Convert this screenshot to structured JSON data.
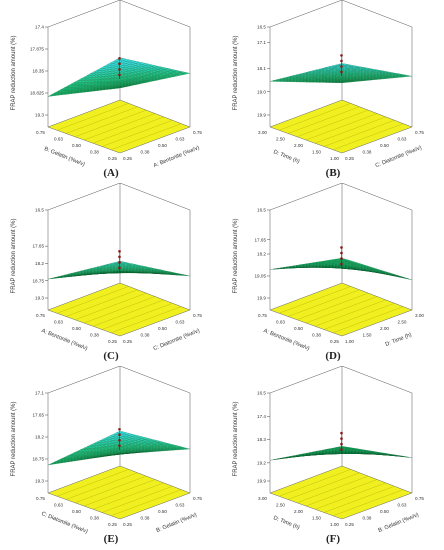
{
  "figure": {
    "panels": [
      {
        "id": "A",
        "caption": "(A)"
      },
      {
        "id": "B",
        "caption": "(B)"
      },
      {
        "id": "C",
        "caption": "(C)"
      },
      {
        "id": "D",
        "caption": "(D)"
      },
      {
        "id": "E",
        "caption": "(E)"
      },
      {
        "id": "F",
        "caption": "(F)"
      }
    ]
  },
  "chart_data": [
    {
      "type": "surface3d",
      "panel": "A",
      "zlabel": "FRAP reduction amount (%)",
      "z_ticks": [
        "17.4",
        "17.875",
        "18.35",
        "18.825",
        "19.3"
      ],
      "factor_left": {
        "label": "B: Gelatin (%w/v)",
        "ticks": [
          "0.75",
          "0.63",
          "0.50",
          "0.38",
          "0.25"
        ]
      },
      "factor_right": {
        "label": "A: Bentonite (%w/v)",
        "ticks": [
          "0.25",
          "0.38",
          "0.50",
          "0.63",
          "0.75"
        ]
      },
      "surface_corners": {
        "left": 18.9,
        "back": 19.3,
        "right": 18.4,
        "front": 17.5
      },
      "floor_color": "#f0f020",
      "surface_colors": [
        "#00a94f",
        "#1fd18f",
        "#35e0e6"
      ]
    },
    {
      "type": "surface3d",
      "panel": "B",
      "zlabel": "FRAP reduction amount (%)",
      "z_ticks": [
        "16.5",
        "17.1",
        "18.1",
        "19.0",
        "19.9"
      ],
      "factor_left": {
        "label": "D: Time (h)",
        "ticks": [
          "3.00",
          "2.50",
          "2.00",
          "1.50",
          "1.00"
        ]
      },
      "factor_right": {
        "label": "C: Diatomite (%w/v)",
        "ticks": [
          "0.25",
          "0.38",
          "0.50",
          "0.63",
          "0.75"
        ]
      },
      "surface_corners": {
        "left": 18.6,
        "back": 19.7,
        "right": 18.4,
        "front": 16.9
      },
      "floor_color": "#f0f020",
      "surface_colors": [
        "#00a94f",
        "#1fd18f",
        "#35e0e6"
      ]
    },
    {
      "type": "surface3d",
      "panel": "C",
      "zlabel": "FRAP reduction amount (%)",
      "z_ticks": [
        "16.5",
        "17.65",
        "18.2",
        "18.75",
        "19.3"
      ],
      "factor_left": {
        "label": "A: Bentonite (%w/v)",
        "ticks": [
          "0.75",
          "0.63",
          "0.50",
          "0.38",
          "0.25"
        ]
      },
      "factor_right": {
        "label": "C: Diatomite (%w/v)",
        "ticks": [
          "0.25",
          "0.38",
          "0.50",
          "0.63",
          "0.75"
        ]
      },
      "surface_corners": {
        "left": 18.7,
        "back": 19.3,
        "right": 18.6,
        "front": 17.3
      },
      "floor_color": "#f0f020",
      "surface_colors": [
        "#00a94f",
        "#1fd18f",
        "#35e0e6"
      ]
    },
    {
      "type": "surface3d",
      "panel": "D",
      "zlabel": "FRAP reduction amount (%)",
      "z_ticks": [
        "16.5",
        "17.65",
        "18.2",
        "19.05",
        "19.9"
      ],
      "factor_left": {
        "label": "A: Bentonite (%w/v)",
        "ticks": [
          "0.75",
          "0.63",
          "0.50",
          "0.38",
          "0.25"
        ]
      },
      "factor_right": {
        "label": "D: Time (h)",
        "ticks": [
          "1.00",
          "1.50",
          "2.00",
          "2.50",
          "3.00"
        ]
      },
      "surface_corners": {
        "left": 18.8,
        "back": 19.4,
        "right": 19.2,
        "front": 17.6
      },
      "floor_color": "#f0f020",
      "surface_colors": [
        "#00a94f",
        "#1fd18f",
        "#35e0e6"
      ]
    },
    {
      "type": "surface3d",
      "panel": "E",
      "zlabel": "FRAP reduction amount (%)",
      "z_ticks": [
        "17.1",
        "17.65",
        "18.2",
        "18.75",
        "19.3"
      ],
      "factor_left": {
        "label": "C: Diatomite (%w/v)",
        "ticks": [
          "0.75",
          "0.63",
          "0.50",
          "0.38",
          "0.25"
        ]
      },
      "factor_right": {
        "label": "B: Gelatin (%w/v)",
        "ticks": [
          "0.25",
          "0.38",
          "0.50",
          "0.63",
          "0.75"
        ]
      },
      "surface_corners": {
        "left": 18.9,
        "back": 19.3,
        "right": 18.5,
        "front": 17.4
      },
      "floor_color": "#f0f020",
      "surface_colors": [
        "#00a94f",
        "#1fd18f",
        "#35e0e6"
      ]
    },
    {
      "type": "surface3d",
      "panel": "F",
      "zlabel": "FRAP reduction amount (%)",
      "z_ticks": [
        "16.5",
        "17.4",
        "18.3",
        "19.2",
        "19.9"
      ],
      "factor_left": {
        "label": "D: Time (h)",
        "ticks": [
          "3.00",
          "2.50",
          "2.00",
          "1.50",
          "1.00"
        ]
      },
      "factor_right": {
        "label": "B: Gelatin (%w/v)",
        "ticks": [
          "0.25",
          "0.38",
          "0.50",
          "0.63",
          "0.75"
        ]
      },
      "surface_corners": {
        "left": 19.1,
        "back": 19.6,
        "right": 19.0,
        "front": 17.7
      },
      "floor_color": "#f0f020",
      "surface_colors": [
        "#00a94f",
        "#1fd18f",
        "#35e0e6"
      ]
    }
  ]
}
